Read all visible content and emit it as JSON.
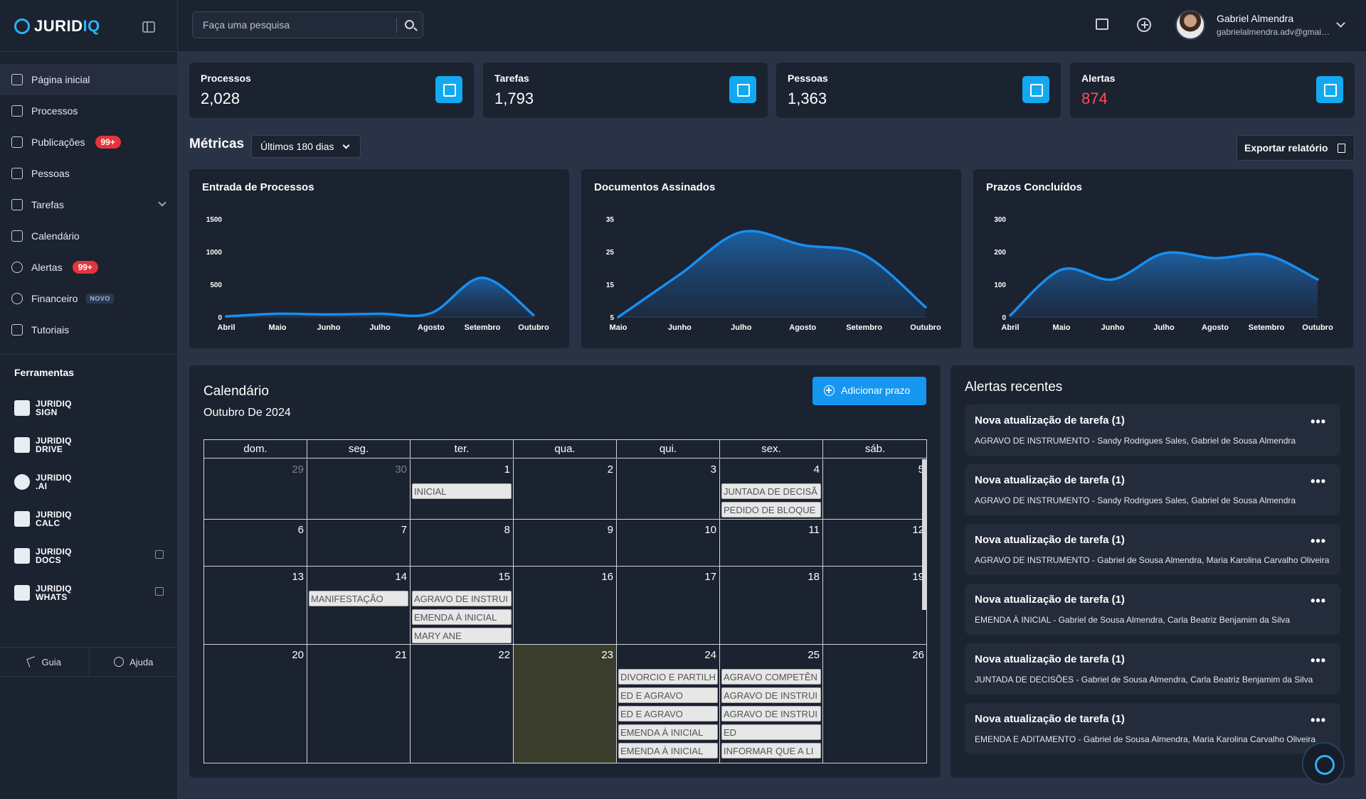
{
  "brand": {
    "name_a": "JURID",
    "name_b": "IQ",
    "accent": "#2bb3f5"
  },
  "search": {
    "placeholder": "Faça uma pesquisa"
  },
  "user": {
    "name": "Gabriel Almendra",
    "email": "gabrielalmendra.adv@gmail.com"
  },
  "sidebar": {
    "items": [
      {
        "label": "Página inicial",
        "icon": "grid-icon"
      },
      {
        "label": "Processos",
        "icon": "briefcase-icon"
      },
      {
        "label": "Publicações",
        "icon": "newspaper-icon",
        "badge": "99+"
      },
      {
        "label": "Pessoas",
        "icon": "contact-icon"
      },
      {
        "label": "Tarefas",
        "icon": "task-icon"
      },
      {
        "label": "Calendário",
        "icon": "calendar-icon"
      },
      {
        "label": "Alertas",
        "icon": "bell-icon",
        "badge": "99+"
      },
      {
        "label": "Financeiro",
        "icon": "dollar-icon",
        "tag": "NOVO"
      },
      {
        "label": "Tutoriais",
        "icon": "video-icon"
      }
    ],
    "tools_title": "Ferramentas",
    "tools": [
      {
        "l1": "JURIDIQ",
        "l2": "SIGN"
      },
      {
        "l1": "JURIDIQ",
        "l2": "DRIVE"
      },
      {
        "l1": "JURIDIQ",
        "l2": ".AI"
      },
      {
        "l1": "JURIDIQ",
        "l2": "CALC"
      },
      {
        "l1": "JURIDIQ",
        "l2": "DOCS"
      },
      {
        "l1": "JURIDIQ",
        "l2": "WHATS"
      }
    ],
    "guide_label": "Guia",
    "help_label": "Ajuda"
  },
  "stats": [
    {
      "label": "Processos",
      "value": "2,028"
    },
    {
      "label": "Tarefas",
      "value": "1,793"
    },
    {
      "label": "Pessoas",
      "value": "1,363"
    },
    {
      "label": "Alertas",
      "value": "874"
    }
  ],
  "metrics": {
    "title": "Métricas",
    "period": "Últimos 180 dias",
    "export_label": "Exportar relatório"
  },
  "chart_data": [
    {
      "type": "area",
      "title": "Entrada de Processos",
      "categories": [
        "Abril",
        "Maio",
        "Junho",
        "Julho",
        "Agosto",
        "Setembro",
        "Outubro"
      ],
      "values": [
        10,
        50,
        40,
        50,
        60,
        600,
        30
      ],
      "yticks": [
        0,
        500,
        1000,
        1500
      ],
      "ylim": [
        0,
        1500
      ]
    },
    {
      "type": "area",
      "title": "Documentos Assinados",
      "categories": [
        "Maio",
        "Junho",
        "Julho",
        "Agosto",
        "Setembro",
        "Outubro"
      ],
      "values": [
        5,
        18,
        31,
        27,
        24,
        8
      ],
      "yticks": [
        5,
        15,
        25,
        35
      ],
      "ylim": [
        5,
        35
      ]
    },
    {
      "type": "area",
      "title": "Prazos Concluídos",
      "categories": [
        "Abril",
        "Maio",
        "Junho",
        "Julho",
        "Agosto",
        "Setembro",
        "Outubro"
      ],
      "values": [
        5,
        145,
        115,
        195,
        180,
        190,
        115
      ],
      "yticks": [
        0,
        100,
        200,
        300
      ],
      "ylim": [
        0,
        300
      ]
    }
  ],
  "calendar": {
    "title": "Calendário",
    "month": "Outubro De 2024",
    "add_label": "Adicionar prazo",
    "weekdays": [
      "dom.",
      "seg.",
      "ter.",
      "qua.",
      "qui.",
      "sex.",
      "sáb."
    ],
    "weeks": [
      [
        {
          "n": "29",
          "muted": true,
          "events": []
        },
        {
          "n": "30",
          "muted": true,
          "events": []
        },
        {
          "n": "1",
          "events": [
            "INICIAL"
          ]
        },
        {
          "n": "2",
          "events": []
        },
        {
          "n": "3",
          "events": []
        },
        {
          "n": "4",
          "events": [
            "JUNTADA DE DECISÃ",
            "PEDIDO DE BLOQUE"
          ]
        },
        {
          "n": "5",
          "events": []
        }
      ],
      [
        {
          "n": "6",
          "events": []
        },
        {
          "n": "7",
          "events": []
        },
        {
          "n": "8",
          "events": []
        },
        {
          "n": "9",
          "events": []
        },
        {
          "n": "10",
          "events": []
        },
        {
          "n": "11",
          "events": []
        },
        {
          "n": "12",
          "events": []
        }
      ],
      [
        {
          "n": "13",
          "events": []
        },
        {
          "n": "14",
          "events": [
            "MANIFESTAÇÃO"
          ]
        },
        {
          "n": "15",
          "events": [
            "AGRAVO DE INSTRUI",
            "EMENDA À INICIAL",
            "MARY ANE"
          ]
        },
        {
          "n": "16",
          "events": []
        },
        {
          "n": "17",
          "events": []
        },
        {
          "n": "18",
          "events": []
        },
        {
          "n": "19",
          "events": []
        }
      ],
      [
        {
          "n": "20",
          "events": []
        },
        {
          "n": "21",
          "events": []
        },
        {
          "n": "22",
          "events": []
        },
        {
          "n": "23",
          "today": true,
          "events": []
        },
        {
          "n": "24",
          "events": [
            "DIVORCIO E PARTILH",
            "ED E AGRAVO",
            "ED E AGRAVO",
            "EMENDA À INICIAL",
            "EMENDA À INICIAL"
          ]
        },
        {
          "n": "25",
          "events": [
            "AGRAVO COMPETÊN",
            "AGRAVO DE INSTRUI",
            "AGRAVO DE INSTRUI",
            "ED",
            "INFORMAR QUE A LI"
          ]
        },
        {
          "n": "26",
          "events": []
        }
      ]
    ]
  },
  "alerts": {
    "title": "Alertas recentes",
    "items": [
      {
        "title": "Nova atualização de tarefa (1)",
        "desc": "AGRAVO DE INSTRUMENTO - Sandy Rodrigues Sales, Gabriel de Sousa Almendra"
      },
      {
        "title": "Nova atualização de tarefa (1)",
        "desc": "AGRAVO DE INSTRUMENTO - Sandy Rodrigues Sales, Gabriel de Sousa Almendra"
      },
      {
        "title": "Nova atualização de tarefa (1)",
        "desc": "AGRAVO DE INSTRUMENTO - Gabriel de Sousa Almendra, Maria Karolina Carvalho Oliveira"
      },
      {
        "title": "Nova atualização de tarefa (1)",
        "desc": "EMENDA À INICIAL - Gabriel de Sousa Almendra, Carla Beatriz Benjamim da Silva"
      },
      {
        "title": "Nova atualização de tarefa (1)",
        "desc": "JUNTADA DE DECISÕES - Gabriel de Sousa Almendra, Carla Beatriz Benjamim da Silva"
      },
      {
        "title": "Nova atualização de tarefa (1)",
        "desc": "EMENDA E ADITAMENTO - Gabriel de Sousa Almendra, Maria Karolina Carvalho Oliveira"
      }
    ]
  },
  "colors": {
    "accent": "#1597f0",
    "danger": "#e5343d",
    "panel": "#1b2230",
    "bg": "#2a3346"
  }
}
